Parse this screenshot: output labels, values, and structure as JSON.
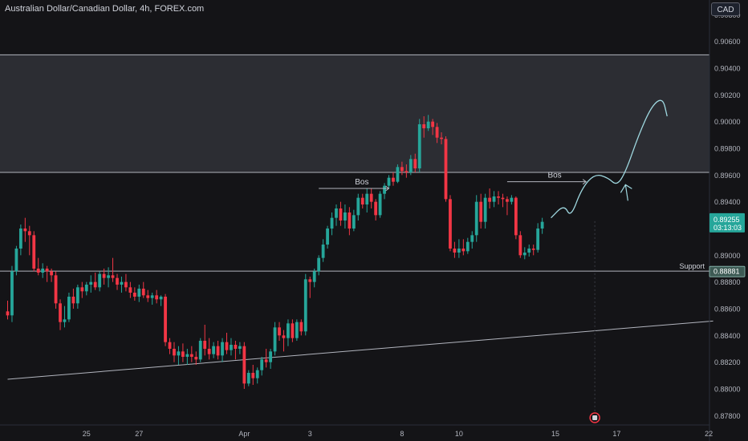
{
  "header": {
    "title": "Australian Dollar/Canadian Dollar, 4h, FOREX.com",
    "currency_button": "CAD"
  },
  "colors": {
    "background": "#141417",
    "up": "#26a69a",
    "down": "#f23645",
    "zone": "#2c2d33",
    "line": "#b2b5be",
    "drawing": "#9fd8e0",
    "price_badge": "#26a69a",
    "support_badge": "#3d5a54"
  },
  "icons": {
    "event_marker": "calendar-event-icon"
  },
  "chart_data": {
    "type": "candlestick",
    "symbol": "AUDCAD",
    "timeframe": "4h",
    "y_ticks": [
      "0.90800",
      "0.90600",
      "0.90400",
      "0.90200",
      "0.90000",
      "0.89800",
      "0.89600",
      "0.89400",
      "0.89200",
      "0.89000",
      "0.88800",
      "0.88600",
      "0.88400",
      "0.88200",
      "0.88000",
      "0.87800"
    ],
    "x_ticks": [
      {
        "label": "25",
        "index": 18
      },
      {
        "label": "27",
        "index": 30
      },
      {
        "label": "Apr",
        "index": 54
      },
      {
        "label": "3",
        "index": 69
      },
      {
        "label": "8",
        "index": 90
      },
      {
        "label": "10",
        "index": 103
      },
      {
        "label": "15",
        "index": 125
      },
      {
        "label": "17",
        "index": 139
      },
      {
        "label": "22",
        "index": 160
      }
    ],
    "ylim": [
      0.8773,
      0.9091
    ],
    "current_price": {
      "price": "0.89255",
      "countdown": "03:13:03",
      "value": 0.89255
    },
    "support": {
      "label": "Support",
      "price": "0.88881",
      "value": 0.88881
    },
    "resistance_zone": {
      "top": 0.905,
      "bottom": 0.8962
    },
    "trendline": {
      "start": {
        "index": 0,
        "value": 0.88072
      },
      "end": {
        "index": 161,
        "value": 0.88508
      }
    },
    "annotations": [
      {
        "text": "Bos",
        "index_from": 71,
        "index_to": 87,
        "value": 0.895
      },
      {
        "text": "Bos",
        "index_from": 114,
        "index_to": 132,
        "value": 0.8955
      }
    ],
    "projection_path": [
      [
        124,
        0.8928
      ],
      [
        127,
        0.8938
      ],
      [
        128.5,
        0.8928
      ],
      [
        131,
        0.895
      ],
      [
        134,
        0.8961
      ],
      [
        137,
        0.8958
      ],
      [
        139,
        0.8952
      ],
      [
        141,
        0.8962
      ],
      [
        144,
        0.899
      ],
      [
        147,
        0.9012
      ],
      [
        149.5,
        0.9018
      ],
      [
        150.5,
        0.9004
      ]
    ],
    "projection_arrow": {
      "index": 141,
      "value": 0.8948
    },
    "event_marker_index": 134,
    "candles": [
      [
        0.8858,
        0.8866,
        0.8852,
        0.8855
      ],
      [
        0.8855,
        0.8892,
        0.885,
        0.8888
      ],
      [
        0.8888,
        0.8907,
        0.8885,
        0.8905
      ],
      [
        0.8905,
        0.8923,
        0.89,
        0.892
      ],
      [
        0.892,
        0.8928,
        0.891,
        0.8918
      ],
      [
        0.8918,
        0.8922,
        0.89,
        0.8915
      ],
      [
        0.8915,
        0.8918,
        0.8888,
        0.889
      ],
      [
        0.889,
        0.8898,
        0.8885,
        0.8887
      ],
      [
        0.8887,
        0.8894,
        0.8883,
        0.889
      ],
      [
        0.889,
        0.8892,
        0.888,
        0.8888
      ],
      [
        0.8888,
        0.889,
        0.888,
        0.8885
      ],
      [
        0.8885,
        0.8888,
        0.886,
        0.8864
      ],
      [
        0.8864,
        0.8867,
        0.8844,
        0.885
      ],
      [
        0.885,
        0.8862,
        0.8846,
        0.8852
      ],
      [
        0.8852,
        0.8872,
        0.885,
        0.8869
      ],
      [
        0.8869,
        0.8875,
        0.886,
        0.8864
      ],
      [
        0.8864,
        0.8878,
        0.886,
        0.8876
      ],
      [
        0.8876,
        0.888,
        0.8868,
        0.8873
      ],
      [
        0.8873,
        0.888,
        0.887,
        0.8878
      ],
      [
        0.8878,
        0.8885,
        0.8872,
        0.888
      ],
      [
        0.888,
        0.8887,
        0.8874,
        0.8876
      ],
      [
        0.8876,
        0.8888,
        0.8873,
        0.8886
      ],
      [
        0.8886,
        0.889,
        0.8878,
        0.8883
      ],
      [
        0.8883,
        0.8891,
        0.8876,
        0.8885
      ],
      [
        0.8885,
        0.8898,
        0.888,
        0.8883
      ],
      [
        0.8883,
        0.8886,
        0.8874,
        0.8878
      ],
      [
        0.8878,
        0.8884,
        0.8872,
        0.888
      ],
      [
        0.888,
        0.8886,
        0.8873,
        0.8876
      ],
      [
        0.8876,
        0.888,
        0.8868,
        0.8872
      ],
      [
        0.8872,
        0.8876,
        0.8866,
        0.8869
      ],
      [
        0.8869,
        0.8878,
        0.8865,
        0.8875
      ],
      [
        0.8875,
        0.888,
        0.8868,
        0.887
      ],
      [
        0.887,
        0.8874,
        0.8865,
        0.8868
      ],
      [
        0.8868,
        0.8872,
        0.8863,
        0.887
      ],
      [
        0.887,
        0.8874,
        0.8864,
        0.8867
      ],
      [
        0.8867,
        0.887,
        0.8862,
        0.8869
      ],
      [
        0.8869,
        0.8871,
        0.8832,
        0.8835
      ],
      [
        0.8835,
        0.8838,
        0.8826,
        0.883
      ],
      [
        0.883,
        0.8835,
        0.882,
        0.8825
      ],
      [
        0.8825,
        0.8832,
        0.8818,
        0.8828
      ],
      [
        0.8828,
        0.8834,
        0.882,
        0.8824
      ],
      [
        0.8824,
        0.883,
        0.8818,
        0.8826
      ],
      [
        0.8826,
        0.8832,
        0.882,
        0.8824
      ],
      [
        0.8824,
        0.8828,
        0.8818,
        0.8822
      ],
      [
        0.8822,
        0.8838,
        0.882,
        0.8836
      ],
      [
        0.8836,
        0.8848,
        0.8825,
        0.883
      ],
      [
        0.883,
        0.8838,
        0.8822,
        0.8826
      ],
      [
        0.8826,
        0.8835,
        0.8823,
        0.8832
      ],
      [
        0.8832,
        0.8836,
        0.8822,
        0.8825
      ],
      [
        0.8825,
        0.8838,
        0.882,
        0.8835
      ],
      [
        0.8835,
        0.8842,
        0.8826,
        0.8829
      ],
      [
        0.8829,
        0.8838,
        0.8825,
        0.8833
      ],
      [
        0.8833,
        0.8836,
        0.8822,
        0.883
      ],
      [
        0.883,
        0.8835,
        0.8826,
        0.8832
      ],
      [
        0.8832,
        0.8835,
        0.88,
        0.8804
      ],
      [
        0.8804,
        0.8814,
        0.8802,
        0.8812
      ],
      [
        0.8812,
        0.8818,
        0.8803,
        0.8808
      ],
      [
        0.8808,
        0.8816,
        0.8804,
        0.8814
      ],
      [
        0.8814,
        0.8824,
        0.881,
        0.8822
      ],
      [
        0.8822,
        0.883,
        0.8816,
        0.882
      ],
      [
        0.882,
        0.883,
        0.8815,
        0.8828
      ],
      [
        0.8828,
        0.885,
        0.8825,
        0.8846
      ],
      [
        0.8846,
        0.885,
        0.8836,
        0.884
      ],
      [
        0.884,
        0.8844,
        0.8828,
        0.8838
      ],
      [
        0.8838,
        0.8852,
        0.8832,
        0.8849
      ],
      [
        0.8849,
        0.8852,
        0.8835,
        0.8838
      ],
      [
        0.8838,
        0.8852,
        0.8836,
        0.885
      ],
      [
        0.885,
        0.8852,
        0.884,
        0.8843
      ],
      [
        0.8843,
        0.8886,
        0.884,
        0.8882
      ],
      [
        0.8882,
        0.8884,
        0.8868,
        0.888
      ],
      [
        0.888,
        0.889,
        0.8876,
        0.8888
      ],
      [
        0.8888,
        0.89,
        0.8885,
        0.8898
      ],
      [
        0.8898,
        0.8912,
        0.8895,
        0.8908
      ],
      [
        0.8908,
        0.8922,
        0.8905,
        0.892
      ],
      [
        0.892,
        0.8932,
        0.8915,
        0.8928
      ],
      [
        0.8928,
        0.8938,
        0.8922,
        0.8935
      ],
      [
        0.8935,
        0.894,
        0.8922,
        0.8926
      ],
      [
        0.8926,
        0.8938,
        0.892,
        0.8932
      ],
      [
        0.8932,
        0.8936,
        0.8915,
        0.892
      ],
      [
        0.892,
        0.8934,
        0.8918,
        0.893
      ],
      [
        0.893,
        0.8946,
        0.8926,
        0.8943
      ],
      [
        0.8943,
        0.8946,
        0.8935,
        0.8938
      ],
      [
        0.8938,
        0.895,
        0.8932,
        0.8946
      ],
      [
        0.8946,
        0.895,
        0.8935,
        0.894
      ],
      [
        0.894,
        0.8942,
        0.8926,
        0.893
      ],
      [
        0.893,
        0.8948,
        0.8928,
        0.8946
      ],
      [
        0.8946,
        0.8954,
        0.8942,
        0.8952
      ],
      [
        0.8952,
        0.896,
        0.895,
        0.8958
      ],
      [
        0.8958,
        0.8962,
        0.8952,
        0.8955
      ],
      [
        0.8955,
        0.8968,
        0.8954,
        0.8966
      ],
      [
        0.8966,
        0.897,
        0.896,
        0.8963
      ],
      [
        0.8963,
        0.8968,
        0.8958,
        0.8962
      ],
      [
        0.8962,
        0.8975,
        0.896,
        0.8972
      ],
      [
        0.8972,
        0.8976,
        0.8962,
        0.8965
      ],
      [
        0.8965,
        0.9002,
        0.8962,
        0.8998
      ],
      [
        0.8998,
        0.9004,
        0.8988,
        0.8995
      ],
      [
        0.8995,
        0.9005,
        0.8993,
        0.9
      ],
      [
        0.9,
        0.9002,
        0.899,
        0.8996
      ],
      [
        0.8996,
        0.8999,
        0.8984,
        0.8988
      ],
      [
        0.8988,
        0.8992,
        0.8983,
        0.8987
      ],
      [
        0.8987,
        0.8989,
        0.894,
        0.8942
      ],
      [
        0.8942,
        0.8945,
        0.8903,
        0.8905
      ],
      [
        0.8905,
        0.891,
        0.8898,
        0.8902
      ],
      [
        0.8902,
        0.8912,
        0.8898,
        0.8905
      ],
      [
        0.8905,
        0.8912,
        0.89,
        0.8903
      ],
      [
        0.8903,
        0.8913,
        0.8901,
        0.891
      ],
      [
        0.891,
        0.8918,
        0.8905,
        0.8915
      ],
      [
        0.8915,
        0.8945,
        0.891,
        0.894
      ],
      [
        0.894,
        0.8946,
        0.892,
        0.8925
      ],
      [
        0.8925,
        0.8946,
        0.892,
        0.8943
      ],
      [
        0.8943,
        0.895,
        0.8935,
        0.894
      ],
      [
        0.894,
        0.8948,
        0.8936,
        0.8944
      ],
      [
        0.8944,
        0.8948,
        0.8938,
        0.8943
      ],
      [
        0.8943,
        0.8946,
        0.8936,
        0.8942
      ],
      [
        0.8942,
        0.8944,
        0.893,
        0.894
      ],
      [
        0.894,
        0.8945,
        0.8938,
        0.8943
      ],
      [
        0.8943,
        0.8944,
        0.8912,
        0.8915
      ],
      [
        0.8915,
        0.8918,
        0.8898,
        0.89
      ],
      [
        0.89,
        0.8906,
        0.8897,
        0.8902
      ],
      [
        0.8902,
        0.8908,
        0.8899,
        0.8905
      ],
      [
        0.8905,
        0.8908,
        0.89,
        0.8904
      ],
      [
        0.8904,
        0.8924,
        0.8902,
        0.892
      ],
      [
        0.892,
        0.8928,
        0.8916,
        0.8925
      ]
    ]
  }
}
